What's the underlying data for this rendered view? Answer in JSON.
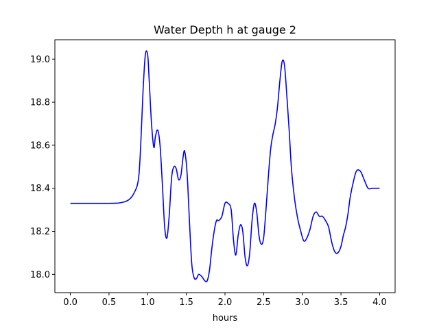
{
  "chart_data": {
    "type": "line",
    "title": "Water Depth h at gauge 2",
    "xlabel": "hours",
    "ylabel": "",
    "xlim": [
      -0.2,
      4.2
    ],
    "ylim": [
      17.915,
      19.09
    ],
    "xticks": [
      0.0,
      0.5,
      1.0,
      1.5,
      2.0,
      2.5,
      3.0,
      3.5,
      4.0
    ],
    "xtick_labels": [
      "0.0",
      "0.5",
      "1.0",
      "1.5",
      "2.0",
      "2.5",
      "3.0",
      "3.5",
      "4.0"
    ],
    "yticks": [
      18.0,
      18.2,
      18.4,
      18.6,
      18.8,
      19.0
    ],
    "ytick_labels": [
      "18.0",
      "18.2",
      "18.4",
      "18.6",
      "18.8",
      "19.0"
    ],
    "grid": false,
    "series": [
      {
        "color": "#0000ff",
        "x": [
          0.0,
          0.5,
          0.65,
          0.75,
          0.82,
          0.88,
          0.91,
          0.94,
          0.97,
          1.0,
          1.02,
          1.05,
          1.08,
          1.1,
          1.13,
          1.16,
          1.19,
          1.22,
          1.25,
          1.28,
          1.31,
          1.34,
          1.37,
          1.4,
          1.43,
          1.46,
          1.48,
          1.51,
          1.54,
          1.57,
          1.6,
          1.63,
          1.66,
          1.7,
          1.74,
          1.77,
          1.8,
          1.83,
          1.86,
          1.89,
          1.92,
          1.96,
          2.0,
          2.04,
          2.08,
          2.11,
          2.14,
          2.17,
          2.2,
          2.23,
          2.26,
          2.29,
          2.32,
          2.35,
          2.38,
          2.41,
          2.44,
          2.47,
          2.5,
          2.53,
          2.56,
          2.59,
          2.62,
          2.65,
          2.68,
          2.71,
          2.74,
          2.77,
          2.8,
          2.83,
          2.86,
          2.9,
          2.94,
          2.98,
          3.02,
          3.06,
          3.1,
          3.14,
          3.18,
          3.22,
          3.26,
          3.3,
          3.34,
          3.38,
          3.42,
          3.46,
          3.5,
          3.53,
          3.56,
          3.59,
          3.62,
          3.66,
          3.7,
          3.75,
          3.8,
          3.85,
          3.9,
          3.94,
          3.97,
          4.0
        ],
        "y": [
          18.33,
          18.33,
          18.333,
          18.345,
          18.375,
          18.44,
          18.6,
          18.85,
          19.02,
          19.02,
          18.9,
          18.7,
          18.59,
          18.64,
          18.67,
          18.6,
          18.42,
          18.22,
          18.17,
          18.28,
          18.45,
          18.5,
          18.49,
          18.44,
          18.46,
          18.55,
          18.57,
          18.47,
          18.25,
          18.05,
          17.985,
          17.98,
          18.0,
          17.99,
          17.97,
          17.97,
          18.02,
          18.12,
          18.2,
          18.25,
          18.25,
          18.27,
          18.33,
          18.33,
          18.3,
          18.16,
          18.09,
          18.18,
          18.23,
          18.2,
          18.08,
          18.04,
          18.1,
          18.25,
          18.33,
          18.29,
          18.18,
          18.14,
          18.17,
          18.3,
          18.45,
          18.58,
          18.65,
          18.7,
          18.78,
          18.9,
          18.99,
          18.97,
          18.83,
          18.67,
          18.49,
          18.35,
          18.26,
          18.2,
          18.155,
          18.17,
          18.21,
          18.27,
          18.29,
          18.27,
          18.27,
          18.25,
          18.22,
          18.15,
          18.105,
          18.1,
          18.13,
          18.18,
          18.22,
          18.28,
          18.36,
          18.43,
          18.48,
          18.48,
          18.44,
          18.4,
          18.4,
          18.4,
          18.4,
          18.4
        ]
      }
    ]
  }
}
